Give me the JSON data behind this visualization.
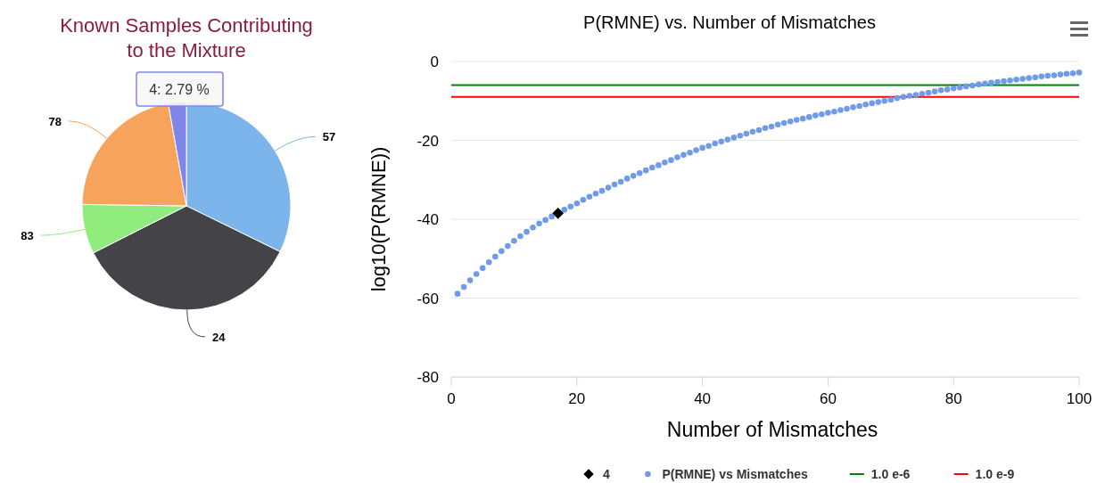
{
  "chart_data": [
    {
      "type": "pie",
      "title": "Known Samples Contributing to the Mixture",
      "categories": [
        "57",
        "24",
        "83",
        "78",
        null
      ],
      "values": [
        32.25,
        35.3,
        7.67,
        21.99,
        2.79
      ],
      "colors": [
        "#7cb5ec",
        "#434348",
        "#90ed7d",
        "#f7a35c",
        "#8085e9"
      ],
      "annotations": [
        "4: 2.79 %"
      ]
    },
    {
      "type": "scatter",
      "title": "P(RMNE) vs. Number of Mismatches",
      "xlabel": "Number of Mismatches",
      "ylabel": "log10(P(RMNE))",
      "xlim": [
        0,
        100
      ],
      "xticks": [
        0,
        20,
        40,
        60,
        80,
        100
      ],
      "ylim": [
        -80,
        0
      ],
      "yticks": [
        -80,
        -60,
        -40,
        -20,
        0
      ],
      "grid": "y",
      "legend": "bottom",
      "series": [
        {
          "name": "4",
          "type": "scatter",
          "marker": "diamond",
          "color": "#000000",
          "x": [
            17
          ],
          "values": [
            -38.5
          ]
        },
        {
          "name": "P(RMNE) vs Mismatches",
          "type": "scatter",
          "marker": "circle",
          "color": "#6f9be8",
          "x": [
            1,
            2,
            3,
            4,
            5,
            6,
            7,
            8,
            9,
            10,
            11,
            12,
            13,
            14,
            15,
            16,
            18,
            19,
            20,
            21,
            22,
            23,
            24,
            25,
            26,
            27,
            28,
            29,
            30,
            31,
            32,
            33,
            34,
            35,
            36,
            37,
            38,
            39,
            40,
            41,
            42,
            43,
            44,
            45,
            46,
            47,
            48,
            49,
            50,
            51,
            52,
            53,
            54,
            55,
            56,
            57,
            58,
            59,
            60,
            61,
            62,
            63,
            64,
            65,
            66,
            67,
            68,
            69,
            70,
            71,
            72,
            73,
            74,
            75,
            76,
            77,
            78,
            79,
            80,
            81,
            82,
            83,
            84,
            85,
            86,
            87,
            88,
            89,
            90,
            91,
            92,
            93,
            94,
            95,
            96,
            97,
            98,
            99,
            100
          ],
          "values": [
            -58.9,
            -57.2,
            -55.5,
            -53.9,
            -52.4,
            -50.9,
            -49.5,
            -48.1,
            -46.8,
            -45.5,
            -44.3,
            -43.2,
            -42.1,
            -41.1,
            -40.2,
            -39.3,
            -37.6,
            -36.8,
            -36.0,
            -35.1,
            -34.3,
            -33.5,
            -32.8,
            -32.0,
            -31.2,
            -30.5,
            -29.7,
            -29.0,
            -28.3,
            -27.6,
            -26.9,
            -26.3,
            -25.6,
            -25.0,
            -24.3,
            -23.7,
            -23.1,
            -22.5,
            -21.9,
            -21.4,
            -20.8,
            -20.3,
            -19.8,
            -19.3,
            -18.8,
            -18.3,
            -17.8,
            -17.4,
            -16.9,
            -16.5,
            -16.0,
            -15.6,
            -15.2,
            -14.8,
            -14.5,
            -14.1,
            -13.7,
            -13.4,
            -13.0,
            -12.7,
            -12.3,
            -12.0,
            -11.6,
            -11.3,
            -10.9,
            -10.6,
            -10.3,
            -10.0,
            -9.7,
            -9.3,
            -9.0,
            -8.7,
            -8.5,
            -8.2,
            -7.9,
            -7.6,
            -7.3,
            -7.1,
            -6.8,
            -6.6,
            -6.3,
            -6.1,
            -5.8,
            -5.6,
            -5.4,
            -5.2,
            -5.0,
            -4.8,
            -4.6,
            -4.4,
            -4.2,
            -4.0,
            -3.8,
            -3.6,
            -3.5,
            -3.3,
            -3.1,
            -3.0,
            -2.8
          ]
        },
        {
          "name": "1.0 e-6",
          "type": "line",
          "marker": "none",
          "line_style": "solid",
          "color": "#008000",
          "x": [
            0,
            100
          ],
          "values": [
            -6,
            -6
          ]
        },
        {
          "name": "1.0 e-9",
          "type": "line",
          "marker": "none",
          "line_style": "solid",
          "color": "#ff0000",
          "x": [
            0,
            100
          ],
          "values": [
            -9,
            -9
          ]
        }
      ]
    }
  ]
}
